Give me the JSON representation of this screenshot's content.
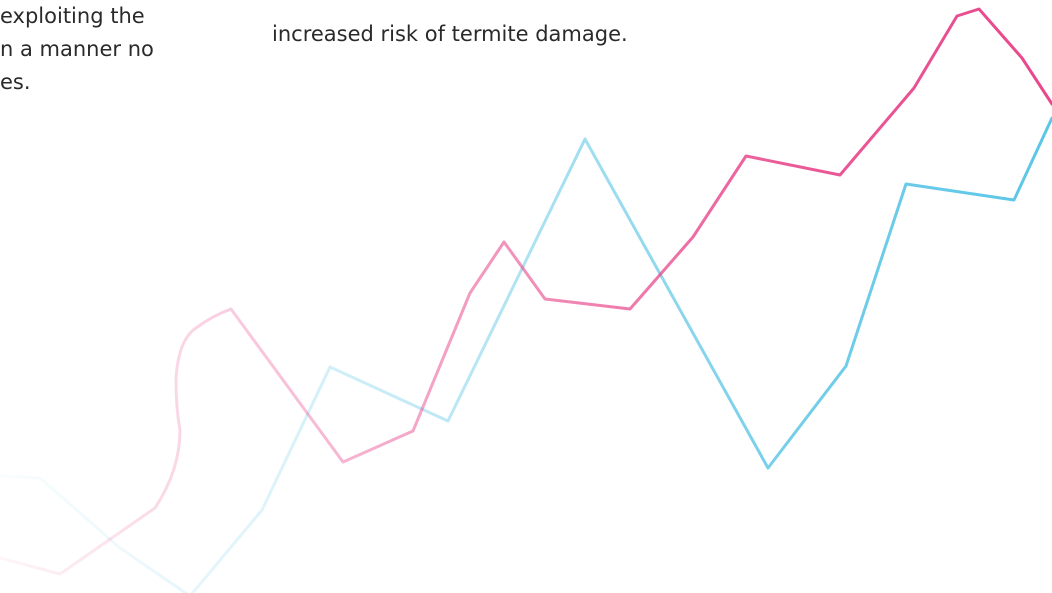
{
  "text_fragments": {
    "left_lines": [
      "exploiting the",
      "n a manner no",
      "es."
    ],
    "middle_line": "increased risk of termite damage."
  },
  "decorative_lines": {
    "pink_color": "#e8488c",
    "blue_color": "#5cc6e6"
  }
}
